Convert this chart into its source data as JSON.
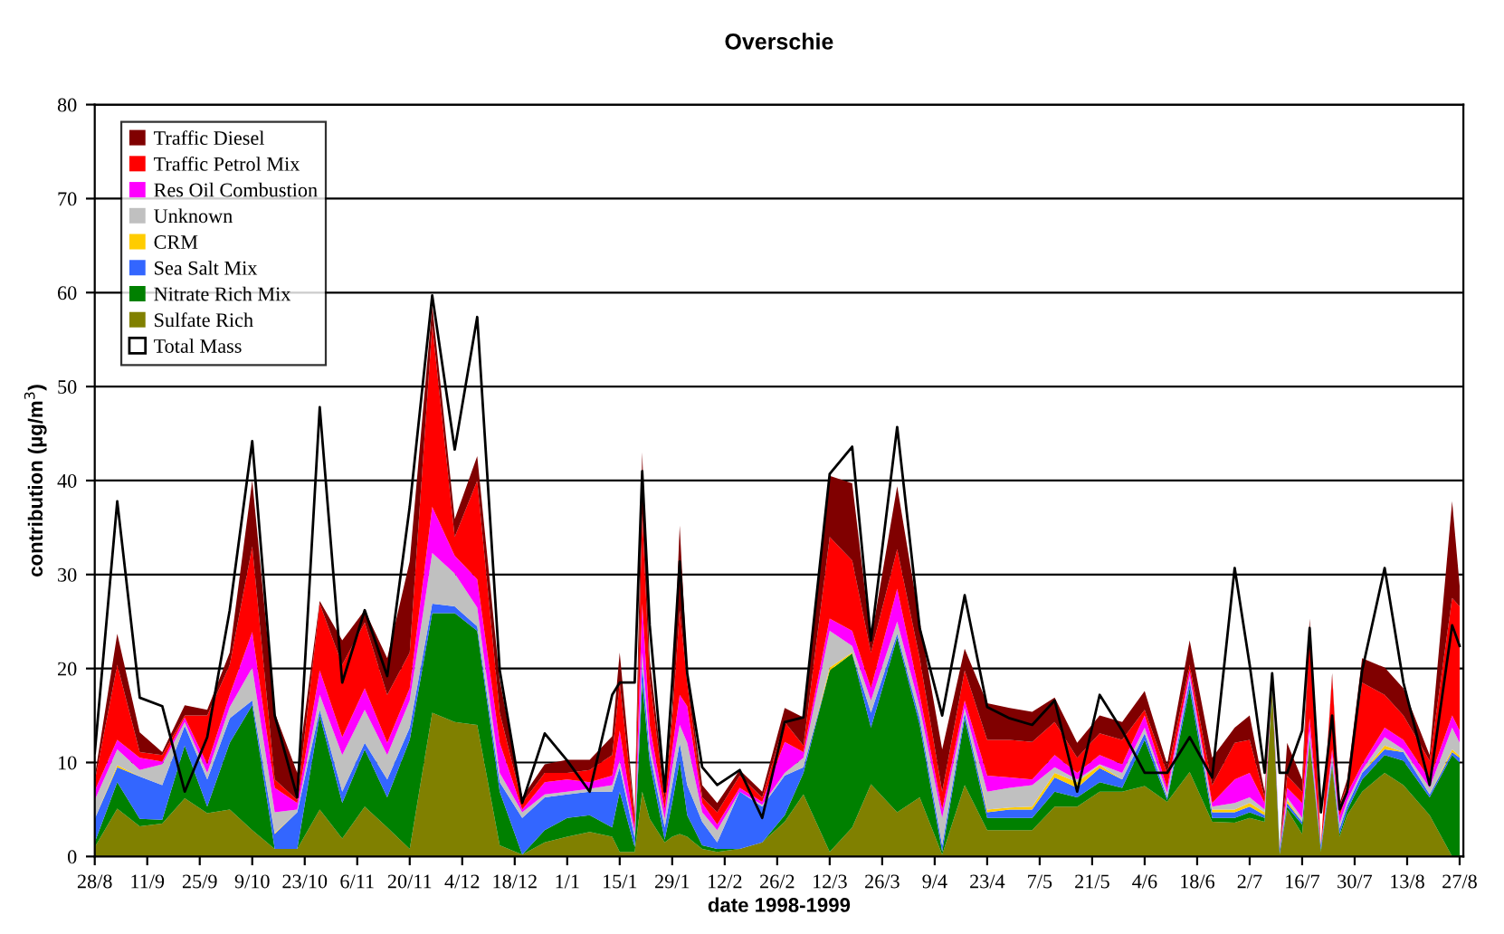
{
  "chart_data": {
    "type": "area",
    "title": "Overschie",
    "xlabel": "date 1998-1999",
    "ylabel": "contribution (µg/m$^{3}$)",
    "stacked": true,
    "grid": "y",
    "legend": "top left",
    "x": [
      "1998-08-28",
      "1998-09-03",
      "1998-09-09",
      "1998-09-15",
      "1998-09-21",
      "1998-09-27",
      "1998-10-03",
      "1998-10-09",
      "1998-10-15",
      "1998-10-21",
      "1998-10-27",
      "1998-11-02",
      "1998-11-08",
      "1998-11-14",
      "1998-11-20",
      "1998-11-26",
      "1998-12-02",
      "1998-12-08",
      "1998-12-14",
      "1998-12-20",
      "1998-12-26",
      "1999-01-01",
      "1999-01-07",
      "1999-01-13",
      "1999-01-15",
      "1999-01-19",
      "1999-01-21",
      "1999-01-23",
      "1999-01-27",
      "1999-01-29",
      "1999-01-31",
      "1999-02-02",
      "1999-02-06",
      "1999-02-10",
      "1999-02-16",
      "1999-02-22",
      "1999-02-28",
      "1999-03-05",
      "1999-03-12",
      "1999-03-18",
      "1999-03-23",
      "1999-03-30",
      "1999-04-05",
      "1999-04-11",
      "1999-04-17",
      "1999-04-23",
      "1999-04-29",
      "1999-05-05",
      "1999-05-11",
      "1999-05-17",
      "1999-05-23",
      "1999-05-29",
      "1999-06-04",
      "1999-06-10",
      "1999-06-16",
      "1999-06-22",
      "1999-06-28",
      "1999-07-02",
      "1999-07-06",
      "1999-07-08",
      "1999-07-10",
      "1999-07-12",
      "1999-07-16",
      "1999-07-18",
      "1999-07-21",
      "1999-07-24",
      "1999-07-26",
      "1999-07-28",
      "1999-08-01",
      "1999-08-07",
      "1999-08-12",
      "1999-08-19",
      "1999-08-25",
      "1999-08-27"
    ],
    "series": [
      {
        "name": "Sulfate Rich",
        "color": "#808000",
        "values": [
          1,
          5.1,
          3.2,
          3.5,
          6.2,
          4.6,
          5,
          2.8,
          0.8,
          0.8,
          5,
          1.9,
          5.3,
          3.1,
          0.8,
          15.3,
          14.3,
          14,
          1.2,
          0.2,
          1.5,
          2.1,
          2.6,
          2.1,
          0.5,
          0.5,
          6.9,
          4,
          1.5,
          2.1,
          2.4,
          2.1,
          0.8,
          0.5,
          0.8,
          1.5,
          3.7,
          6.6,
          0.5,
          3.1,
          7.7,
          4.7,
          6.3,
          0.2,
          7.6,
          2.8,
          2.8,
          2.8,
          5.3,
          5.3,
          6.9,
          6.9,
          7.5,
          5.8,
          9,
          3.7,
          3.6,
          4.1,
          3.7,
          17.9,
          0.2,
          5,
          2.4,
          12.1,
          0.5,
          9.5,
          2.1,
          4.4,
          6.9,
          8.9,
          7.6,
          4.4,
          0,
          0
        ]
      },
      {
        "name": "Nitrate Rich Mix",
        "color": "#008000",
        "values": [
          0.5,
          2.8,
          0.8,
          0.4,
          5.6,
          0.7,
          7.1,
          13.3,
          0,
          0,
          10,
          3.8,
          6.1,
          3.2,
          11.6,
          10.6,
          11.6,
          10,
          5.7,
          0,
          1.3,
          2,
          1.8,
          1,
          6.4,
          0.5,
          11.6,
          6,
          0.3,
          3.6,
          7.8,
          2.3,
          0.4,
          0.3,
          0,
          0,
          0.7,
          2.3,
          19.3,
          18.5,
          6,
          18.6,
          7.7,
          0.3,
          7.1,
          1.3,
          1.3,
          1.3,
          1.6,
          1,
          1,
          0.4,
          4.9,
          0.2,
          8.9,
          0.4,
          0.5,
          0.6,
          0.4,
          0.3,
          0.1,
          0.3,
          1,
          0.3,
          0.2,
          0.3,
          0.3,
          0.5,
          1.3,
          1.9,
          2.6,
          1.9,
          10.8,
          10
        ]
      },
      {
        "name": "Sea Salt Mix",
        "color": "#3366ff",
        "values": [
          2.5,
          1.6,
          4.5,
          3.7,
          2.1,
          2.9,
          2.6,
          0.5,
          1.6,
          3.9,
          0.6,
          1.2,
          0.7,
          1.9,
          1.3,
          1,
          0.7,
          0.5,
          1,
          3.9,
          3.5,
          2.5,
          2.5,
          3.8,
          2.6,
          1,
          1.9,
          1,
          1.3,
          1.9,
          1.9,
          3.2,
          2.5,
          0.7,
          6.1,
          3.8,
          4.2,
          0.6,
          0,
          0,
          1.6,
          0.4,
          0.7,
          0.7,
          0.6,
          0.6,
          0.9,
          0.9,
          1.5,
          1,
          1.5,
          0.9,
          0.7,
          0.3,
          0.9,
          0.6,
          0.6,
          0.6,
          0.3,
          0.3,
          0.5,
          0.4,
          0.3,
          0.3,
          0.5,
          0.4,
          0.6,
          0.5,
          0.7,
          0.6,
          0.9,
          0.3,
          0.3,
          0.5
        ]
      },
      {
        "name": "CRM",
        "color": "#ffcc00",
        "values": [
          0,
          0.2,
          0,
          0,
          0,
          0,
          0,
          0,
          0.1,
          0,
          0,
          0,
          0,
          0,
          0,
          0,
          0,
          0,
          0,
          0,
          0,
          0,
          0,
          0,
          0,
          0,
          0,
          0,
          0,
          0,
          0,
          0,
          0,
          0,
          0,
          0,
          0,
          0,
          0.3,
          0.1,
          0,
          0,
          0,
          0,
          0,
          0.3,
          0.2,
          0.3,
          0.5,
          0.6,
          0.3,
          0,
          0,
          0,
          0,
          0.3,
          0.3,
          0.4,
          0.3,
          0,
          0,
          0.3,
          0,
          0,
          0,
          0,
          0,
          0,
          0,
          0.4,
          0,
          0,
          0.3,
          0.2
        ]
      },
      {
        "name": "Unknown",
        "color": "#c0c0c0",
        "values": [
          2,
          1.7,
          0.7,
          2.2,
          0.4,
          0.7,
          1.2,
          3.5,
          2.2,
          0.3,
          1.6,
          3.9,
          3.5,
          2.6,
          2.9,
          5.4,
          3.5,
          2,
          1,
          0.6,
          0.3,
          0.3,
          0.3,
          0.7,
          0.7,
          0.5,
          1.3,
          1,
          0.9,
          1.9,
          1.9,
          4.5,
          1,
          1.3,
          0,
          0.2,
          0.3,
          1,
          3.9,
          0.7,
          1.3,
          1.3,
          1.2,
          2.9,
          0.5,
          1.9,
          2.1,
          2.3,
          0.6,
          0.3,
          0.1,
          0.7,
          0.6,
          0.5,
          0.4,
          0.3,
          0.7,
          0.6,
          0.3,
          0.3,
          0,
          0.3,
          0.4,
          0.7,
          0,
          0.6,
          0.5,
          0.5,
          0.3,
          0.9,
          0.3,
          0.7,
          2.3,
          1.4
        ]
      },
      {
        "name": "Res Oil Combustion",
        "color": "#ff00ff",
        "values": [
          1,
          1,
          1.3,
          0.3,
          0.5,
          0.9,
          1.3,
          3.8,
          2.6,
          0.7,
          2.6,
          1.9,
          2.3,
          1.3,
          1.3,
          4.9,
          1.9,
          3,
          3.2,
          0.3,
          1.3,
          1.3,
          0.7,
          1,
          3.2,
          0.5,
          5.2,
          2,
          1,
          1.9,
          3.2,
          3.9,
          1,
          0.6,
          0.4,
          0.3,
          3.3,
          0.6,
          1.3,
          1.6,
          1.3,
          3.5,
          1.3,
          0.9,
          0.8,
          1.7,
          1.1,
          0.6,
          1.3,
          0.7,
          1,
          0.9,
          1.3,
          0.5,
          0.6,
          0.4,
          2.5,
          2.6,
          0.7,
          0.4,
          0,
          1,
          1.6,
          1.3,
          0,
          0.6,
          0.8,
          0.8,
          0.6,
          1,
          1,
          0.9,
          1.3,
          1.3
        ]
      },
      {
        "name": "Traffic Petrol Mix",
        "color": "#ff0000",
        "values": [
          1,
          8,
          0.6,
          0.7,
          0.2,
          5.2,
          3.2,
          9.1,
          0.9,
          0.3,
          7.1,
          7.7,
          7,
          5.1,
          3.8,
          19.3,
          2,
          10.5,
          3.2,
          0.7,
          1,
          0.7,
          1.3,
          2.2,
          5.1,
          1,
          9.6,
          5,
          1,
          3.3,
          9,
          2.5,
          0.6,
          1.3,
          1.3,
          0.5,
          2.1,
          0.7,
          8.7,
          7.5,
          3.8,
          4.2,
          3.9,
          1.9,
          3.2,
          3.8,
          4,
          4,
          3.5,
          1.6,
          2.3,
          2.6,
          0.6,
          1.6,
          0.6,
          1.9,
          3.9,
          3.5,
          0.6,
          0.3,
          0,
          1.3,
          1.2,
          9.6,
          0,
          7.8,
          1,
          1,
          8.7,
          3.5,
          2.6,
          2,
          12.5,
          13.2
        ]
      },
      {
        "name": "Traffic Diesel",
        "color": "#800000",
        "values": [
          0.5,
          3.3,
          2.1,
          0.3,
          1.1,
          0.6,
          1.3,
          7,
          7.1,
          2.9,
          0.3,
          2.6,
          1.3,
          3.9,
          9.7,
          2.1,
          1.9,
          2.6,
          3.5,
          0.6,
          0.9,
          1.4,
          1.1,
          2,
          3.2,
          0.5,
          6.5,
          2,
          0.9,
          1.2,
          9,
          1.3,
          1.3,
          1,
          0.6,
          0.6,
          1.5,
          3,
          6.5,
          8.2,
          1.3,
          6.7,
          3.9,
          4.5,
          2.3,
          3.9,
          3.4,
          3.2,
          2.6,
          1.6,
          1.9,
          1.9,
          2,
          0.9,
          2.6,
          2.9,
          1.6,
          2.6,
          0.6,
          0,
          0,
          3.5,
          1.3,
          1,
          0,
          0.3,
          0.4,
          0.5,
          2.6,
          2.9,
          2.9,
          0.6,
          10.3,
          2.2
        ]
      },
      {
        "name": "Total Mass",
        "type": "line",
        "color": "#000000",
        "values": [
          11,
          37.8,
          16.9,
          16,
          6.9,
          12.7,
          26.2,
          44.2,
          15,
          6.3,
          47.8,
          18.5,
          26.2,
          19.2,
          37.2,
          59.7,
          43.3,
          57.4,
          19.8,
          5.7,
          13.1,
          10.2,
          6.9,
          17.2,
          18.5,
          18.5,
          41,
          24.6,
          6.9,
          18.5,
          31.4,
          19.5,
          9.5,
          7.6,
          9.2,
          4.1,
          14.3,
          14.8,
          40.7,
          43.6,
          23,
          45.7,
          24.3,
          15,
          27.8,
          15.9,
          14.7,
          14,
          16.6,
          6.9,
          17.2,
          13.4,
          8.9,
          8.9,
          12.7,
          8.4,
          30.7,
          20.4,
          8.9,
          19.5,
          8.9,
          8.9,
          13.4,
          24.3,
          4.7,
          15,
          5,
          6.9,
          19.8,
          30.7,
          18.5,
          7.6,
          24.6,
          22.4
        ]
      }
    ],
    "xlim": [
      "1998-08-28",
      "1999-08-28"
    ],
    "ylim": [
      0,
      80
    ],
    "yticks": [
      0,
      10,
      20,
      30,
      40,
      50,
      60,
      70,
      80
    ],
    "xticks": [
      {
        "value": "1998-08-28",
        "label": "28/8"
      },
      {
        "value": "1998-09-11",
        "label": "11/9"
      },
      {
        "value": "1998-09-25",
        "label": "25/9"
      },
      {
        "value": "1998-10-09",
        "label": "9/10"
      },
      {
        "value": "1998-10-23",
        "label": "23/10"
      },
      {
        "value": "1998-11-06",
        "label": "6/11"
      },
      {
        "value": "1998-11-20",
        "label": "20/11"
      },
      {
        "value": "1998-12-04",
        "label": "4/12"
      },
      {
        "value": "1998-12-18",
        "label": "18/12"
      },
      {
        "value": "1999-01-01",
        "label": "1/1"
      },
      {
        "value": "1999-01-15",
        "label": "15/1"
      },
      {
        "value": "1999-01-29",
        "label": "29/1"
      },
      {
        "value": "1999-02-12",
        "label": "12/2"
      },
      {
        "value": "1999-02-26",
        "label": "26/2"
      },
      {
        "value": "1999-03-12",
        "label": "12/3"
      },
      {
        "value": "1999-03-26",
        "label": "26/3"
      },
      {
        "value": "1999-04-09",
        "label": "9/4"
      },
      {
        "value": "1999-04-23",
        "label": "23/4"
      },
      {
        "value": "1999-05-07",
        "label": "7/5"
      },
      {
        "value": "1999-05-21",
        "label": "21/5"
      },
      {
        "value": "1999-06-04",
        "label": "4/6"
      },
      {
        "value": "1999-06-18",
        "label": "18/6"
      },
      {
        "value": "1999-07-02",
        "label": "2/7"
      },
      {
        "value": "1999-07-16",
        "label": "16/7"
      },
      {
        "value": "1999-07-30",
        "label": "30/7"
      },
      {
        "value": "1999-08-13",
        "label": "13/8"
      },
      {
        "value": "1999-08-27",
        "label": "27/8"
      }
    ]
  }
}
